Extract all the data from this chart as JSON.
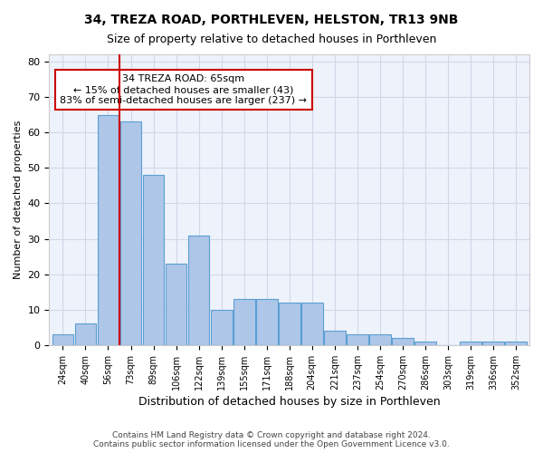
{
  "title1": "34, TREZA ROAD, PORTHLEVEN, HELSTON, TR13 9NB",
  "title2": "Size of property relative to detached houses in Porthleven",
  "xlabel": "Distribution of detached houses by size in Porthleven",
  "ylabel": "Number of detached properties",
  "categories": [
    "24sqm",
    "40sqm",
    "56sqm",
    "73sqm",
    "89sqm",
    "106sqm",
    "122sqm",
    "139sqm",
    "155sqm",
    "171sqm",
    "188sqm",
    "204sqm",
    "221sqm",
    "237sqm",
    "254sqm",
    "270sqm",
    "286sqm",
    "303sqm",
    "319sqm",
    "336sqm",
    "352sqm"
  ],
  "values": [
    3,
    6,
    65,
    63,
    48,
    23,
    31,
    10,
    13,
    13,
    12,
    12,
    4,
    3,
    3,
    2,
    1,
    0,
    1,
    1,
    1
  ],
  "bar_color": "#aec6e8",
  "bar_edge_color": "#5a9fd4",
  "vline_x": 2.5,
  "vline_color": "#cc0000",
  "annotation_text": "34 TREZA ROAD: 65sqm\n← 15% of detached houses are smaller (43)\n83% of semi-detached houses are larger (237) →",
  "annotation_box_color": "#ffffff",
  "annotation_box_edge_color": "#cc0000",
  "ylim": [
    0,
    82
  ],
  "yticks": [
    0,
    10,
    20,
    30,
    40,
    50,
    60,
    70,
    80
  ],
  "grid_color": "#d0d8e8",
  "bg_color": "#eef2fa",
  "footer1": "Contains HM Land Registry data © Crown copyright and database right 2024.",
  "footer2": "Contains public sector information licensed under the Open Government Licence v3.0."
}
